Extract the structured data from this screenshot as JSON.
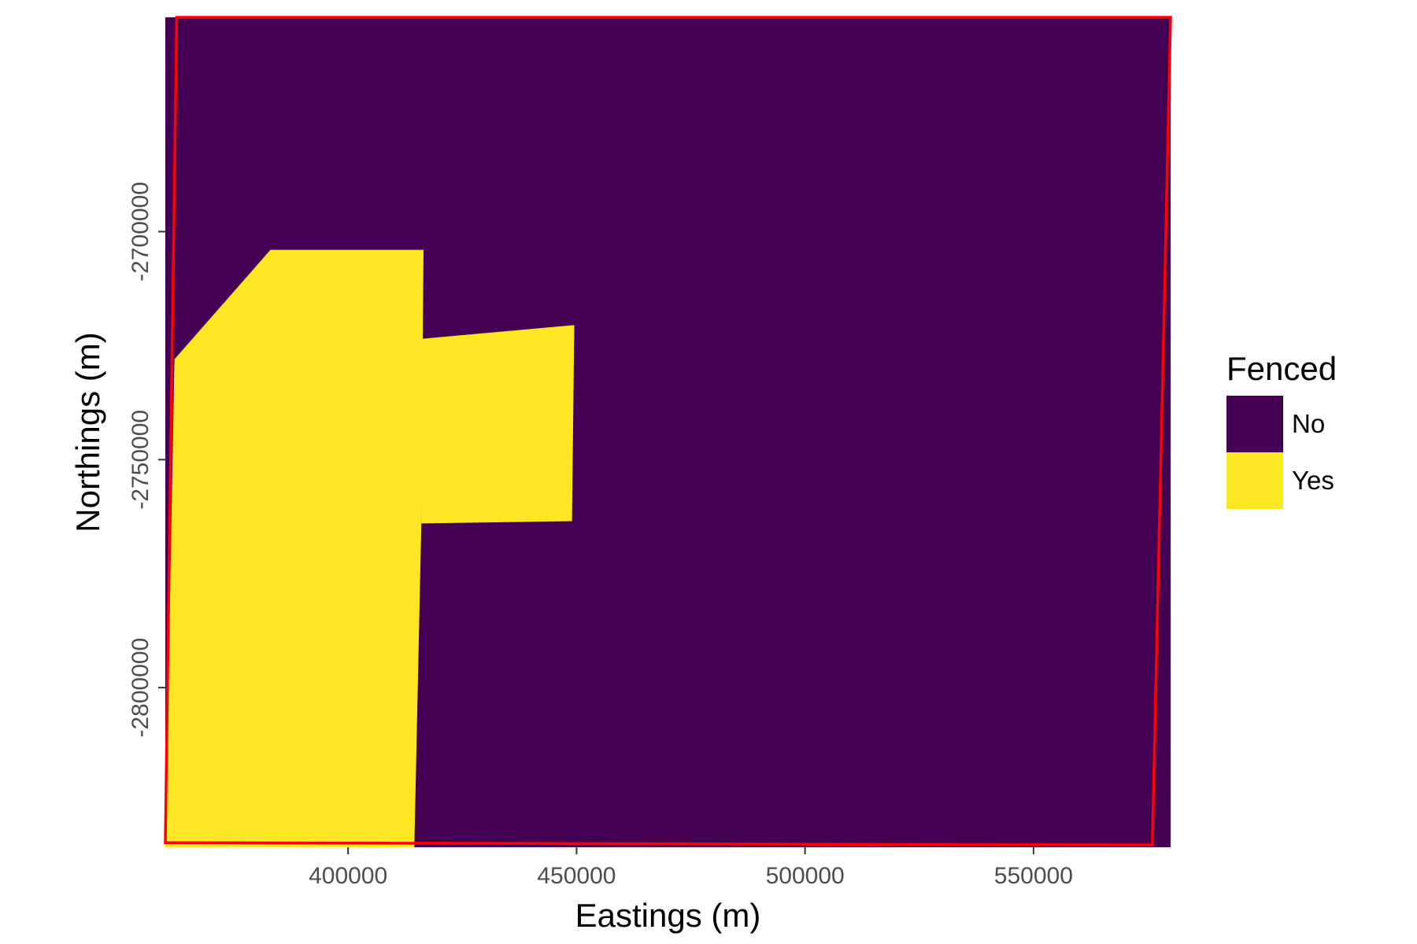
{
  "chart_data": {
    "type": "heatmap",
    "title": "",
    "xlabel": "Eastings (m)",
    "ylabel": "Northings (m)",
    "xlim": [
      360000,
      580000
    ],
    "ylim": [
      -2835000,
      -2653000
    ],
    "x_ticks": [
      {
        "value": 400000,
        "label": "400000"
      },
      {
        "value": 450000,
        "label": "450000"
      },
      {
        "value": 500000,
        "label": "500000"
      },
      {
        "value": 550000,
        "label": "550000"
      }
    ],
    "y_ticks": [
      {
        "value": -2700000,
        "label": "-2700000"
      },
      {
        "value": -2750000,
        "label": "-2750000"
      },
      {
        "value": -2800000,
        "label": "-2800000"
      }
    ],
    "background_class": "No",
    "regions": [
      {
        "class": "Yes",
        "points": [
          [
            362000,
            -2728000
          ],
          [
            383000,
            -2704000
          ],
          [
            416500,
            -2704000
          ],
          [
            416000,
            -2765000
          ],
          [
            414500,
            -2835000
          ],
          [
            360000,
            -2835000
          ]
        ]
      },
      {
        "class": "Yes",
        "points": [
          [
            416000,
            -2723500
          ],
          [
            449500,
            -2720500
          ],
          [
            449000,
            -2763500
          ],
          [
            416000,
            -2764000
          ]
        ]
      }
    ],
    "boundary": {
      "color": "#ff0000",
      "points": [
        [
          362500,
          -2653000
        ],
        [
          580000,
          -2653000
        ],
        [
          576000,
          -2834500
        ],
        [
          360000,
          -2834000
        ]
      ]
    },
    "legend": {
      "title": "Fenced",
      "position": "right",
      "entries": [
        {
          "label": "No",
          "color": "#440154"
        },
        {
          "label": "Yes",
          "color": "#fde725"
        }
      ]
    },
    "grid": false
  }
}
